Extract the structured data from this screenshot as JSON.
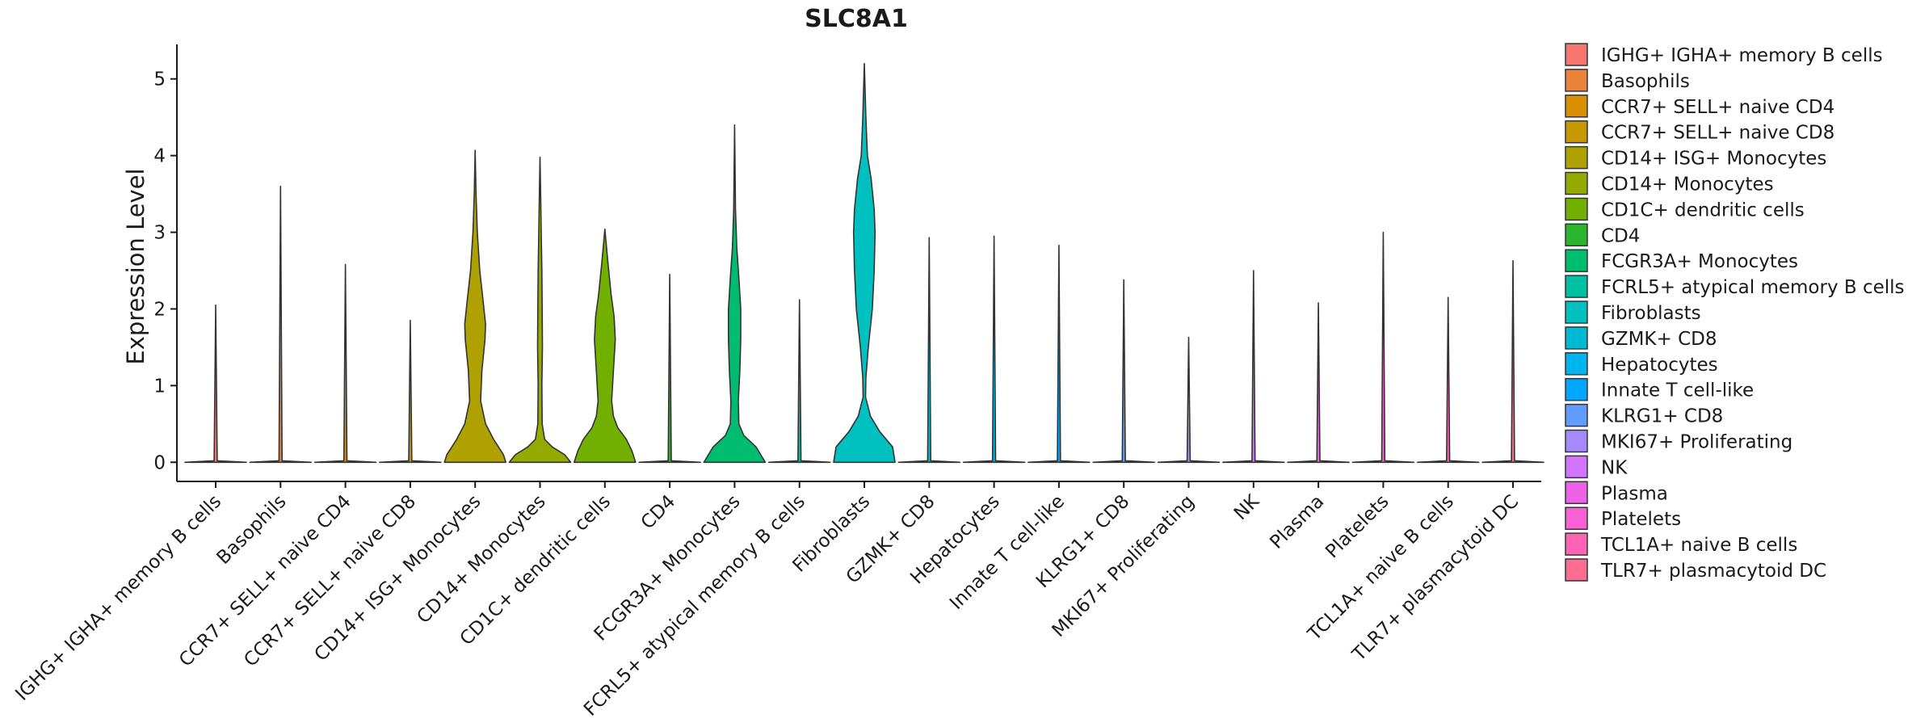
{
  "chart_data": {
    "type": "violin",
    "title": "SLC8A1",
    "xlabel": "",
    "ylabel": "Expression Level",
    "ylim": [
      -0.25,
      5.45
    ],
    "yticks": [
      0,
      1,
      2,
      3,
      4,
      5
    ],
    "legend_position": "right",
    "categories": [
      {
        "name": "IGHG+ IGHA+ memory B cells",
        "legend": " IGHG+ IGHA+ memory B cells",
        "color": "#F8766D",
        "max": 2.05,
        "profile": [
          [
            0,
            1.0
          ],
          [
            0.02,
            0.05
          ],
          [
            2.05,
            0.0
          ]
        ]
      },
      {
        "name": "Basophils",
        "legend": "Basophils",
        "color": "#EC8239",
        "max": 3.6,
        "profile": [
          [
            0,
            1.0
          ],
          [
            0.02,
            0.05
          ],
          [
            3.6,
            0.0
          ]
        ]
      },
      {
        "name": "CCR7+ SELL+ naive CD4",
        "legend": "CCR7+ SELL+ naive CD4",
        "color": "#DB8E00",
        "max": 2.58,
        "profile": [
          [
            0,
            1.0
          ],
          [
            0.02,
            0.05
          ],
          [
            2.58,
            0.0
          ]
        ]
      },
      {
        "name": "CCR7+ SELL+ naive CD8",
        "legend": "CCR7+ SELL+ naive CD8",
        "color": "#C79800",
        "max": 1.85,
        "profile": [
          [
            0,
            1.0
          ],
          [
            0.02,
            0.05
          ],
          [
            1.85,
            0.0
          ]
        ]
      },
      {
        "name": "CD14+ ISG+ Monocytes",
        "legend": "CD14+ ISG+ Monocytes",
        "color": "#AFA100",
        "max": 4.07,
        "profile": [
          [
            0,
            1.0
          ],
          [
            0.1,
            0.92
          ],
          [
            0.3,
            0.6
          ],
          [
            0.5,
            0.34
          ],
          [
            0.8,
            0.18
          ],
          [
            1.2,
            0.22
          ],
          [
            1.6,
            0.32
          ],
          [
            1.8,
            0.34
          ],
          [
            2.1,
            0.26
          ],
          [
            2.5,
            0.15
          ],
          [
            3.0,
            0.07
          ],
          [
            3.5,
            0.03
          ],
          [
            4.07,
            0.0
          ]
        ]
      },
      {
        "name": "CD14+ Monocytes",
        "legend": "CD14+ Monocytes",
        "color": "#94AA00",
        "max": 3.98,
        "profile": [
          [
            0,
            1.0
          ],
          [
            0.1,
            0.8
          ],
          [
            0.2,
            0.4
          ],
          [
            0.3,
            0.15
          ],
          [
            0.5,
            0.07
          ],
          [
            1.0,
            0.06
          ],
          [
            1.5,
            0.08
          ],
          [
            2.0,
            0.07
          ],
          [
            2.5,
            0.06
          ],
          [
            3.0,
            0.04
          ],
          [
            3.5,
            0.02
          ],
          [
            3.98,
            0.0
          ]
        ]
      },
      {
        "name": "CD1C+ dendritic cells",
        "legend": "CD1C+ dendritic cells",
        "color": "#72B000",
        "max": 3.04,
        "profile": [
          [
            0,
            1.0
          ],
          [
            0.15,
            0.88
          ],
          [
            0.3,
            0.7
          ],
          [
            0.45,
            0.42
          ],
          [
            0.6,
            0.28
          ],
          [
            0.8,
            0.22
          ],
          [
            1.2,
            0.28
          ],
          [
            1.6,
            0.34
          ],
          [
            1.9,
            0.3
          ],
          [
            2.2,
            0.2
          ],
          [
            2.6,
            0.1
          ],
          [
            3.04,
            0.0
          ]
        ]
      },
      {
        "name": "CD4",
        "legend": "CD4",
        "color": "#2CB52C",
        "max": 2.45,
        "profile": [
          [
            0,
            1.0
          ],
          [
            0.02,
            0.05
          ],
          [
            2.45,
            0.0
          ]
        ]
      },
      {
        "name": "FCGR3A+ Monocytes",
        "legend": "FCGR3A+ Monocytes",
        "color": "#00BC71",
        "max": 4.4,
        "profile": [
          [
            0,
            1.0
          ],
          [
            0.2,
            0.7
          ],
          [
            0.35,
            0.3
          ],
          [
            0.5,
            0.14
          ],
          [
            0.8,
            0.12
          ],
          [
            1.2,
            0.17
          ],
          [
            1.6,
            0.2
          ],
          [
            2.0,
            0.2
          ],
          [
            2.4,
            0.14
          ],
          [
            2.8,
            0.07
          ],
          [
            3.3,
            0.03
          ],
          [
            4.4,
            0.0
          ]
        ]
      },
      {
        "name": "FCRL5+ atypical memory B cells",
        "legend": "FCRL5+ atypical memory B cells",
        "color": "#00C0A4",
        "max": 2.12,
        "profile": [
          [
            0,
            1.0
          ],
          [
            0.02,
            0.05
          ],
          [
            2.12,
            0.0
          ]
        ]
      },
      {
        "name": "Fibroblasts",
        "legend": "Fibroblasts",
        "color": "#00C0C0",
        "max": 5.2,
        "profile": [
          [
            0,
            1.0
          ],
          [
            0.2,
            0.92
          ],
          [
            0.4,
            0.5
          ],
          [
            0.6,
            0.2
          ],
          [
            0.85,
            0.04
          ],
          [
            1.1,
            0.05
          ],
          [
            1.5,
            0.13
          ],
          [
            2.0,
            0.26
          ],
          [
            2.5,
            0.32
          ],
          [
            3.0,
            0.35
          ],
          [
            3.3,
            0.32
          ],
          [
            3.7,
            0.22
          ],
          [
            4.0,
            0.1
          ],
          [
            4.5,
            0.05
          ],
          [
            5.2,
            0.0
          ]
        ]
      },
      {
        "name": "GZMK+ CD8",
        "legend": "GZMK+ CD8",
        "color": "#00BAD4",
        "max": 2.93,
        "profile": [
          [
            0,
            1.0
          ],
          [
            0.02,
            0.05
          ],
          [
            2.93,
            0.0
          ]
        ]
      },
      {
        "name": "Hepatocytes",
        "legend": "Hepatocytes",
        "color": "#00B5EE",
        "max": 2.95,
        "profile": [
          [
            0,
            1.0
          ],
          [
            0.02,
            0.05
          ],
          [
            2.95,
            0.0
          ]
        ]
      },
      {
        "name": "Innate T cell-like",
        "legend": "Innate T cell-like",
        "color": "#00A6FF",
        "max": 2.83,
        "profile": [
          [
            0,
            1.0
          ],
          [
            0.02,
            0.05
          ],
          [
            2.83,
            0.0
          ]
        ]
      },
      {
        "name": "KLRG1+ CD8",
        "legend": "KLRG1+ CD8",
        "color": "#619CFF",
        "max": 2.38,
        "profile": [
          [
            0,
            1.0
          ],
          [
            0.02,
            0.05
          ],
          [
            2.38,
            0.0
          ]
        ]
      },
      {
        "name": "MKI67+ Proliferating",
        "legend": "MKI67+ Proliferating",
        "color": "#A58AFF",
        "max": 1.63,
        "profile": [
          [
            0,
            1.0
          ],
          [
            0.02,
            0.05
          ],
          [
            1.63,
            0.0
          ]
        ]
      },
      {
        "name": "NK",
        "legend": "NK",
        "color": "#D374FF",
        "max": 2.5,
        "profile": [
          [
            0,
            1.0
          ],
          [
            0.02,
            0.05
          ],
          [
            2.5,
            0.0
          ]
        ]
      },
      {
        "name": "Plasma",
        "legend": "Plasma",
        "color": "#EE61E8",
        "max": 2.08,
        "profile": [
          [
            0,
            1.0
          ],
          [
            0.02,
            0.05
          ],
          [
            2.08,
            0.0
          ]
        ]
      },
      {
        "name": "Platelets",
        "legend": "Platelets",
        "color": "#FB61D7",
        "max": 3.0,
        "profile": [
          [
            0,
            1.0
          ],
          [
            0.02,
            0.05
          ],
          [
            3.0,
            0.0
          ]
        ]
      },
      {
        "name": "TCL1A+ naive B cells",
        "legend": "TCL1A+ naive B cells",
        "color": "#FF63B6",
        "max": 2.15,
        "profile": [
          [
            0,
            1.0
          ],
          [
            0.02,
            0.05
          ],
          [
            2.15,
            0.0
          ]
        ]
      },
      {
        "name": "TLR7+ plasmacytoid DC",
        "legend": "TLR7+ plasmacytoid DC",
        "color": "#FF6C91",
        "max": 2.63,
        "profile": [
          [
            0,
            1.0
          ],
          [
            0.02,
            0.05
          ],
          [
            2.63,
            0.0
          ]
        ]
      }
    ]
  }
}
